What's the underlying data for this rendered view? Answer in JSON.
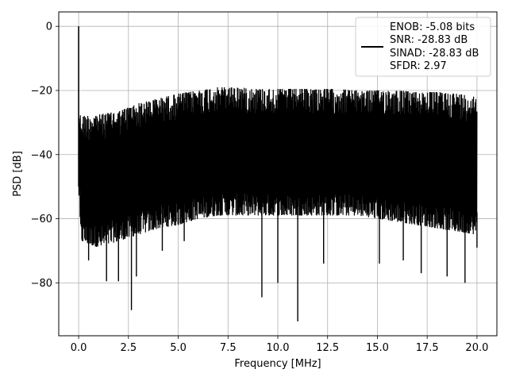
{
  "chart_data": {
    "type": "line",
    "title": "",
    "xlabel": "Frequency [MHz]",
    "ylabel": "PSD [dB]",
    "xlim": [
      -1.0,
      21.0
    ],
    "ylim": [
      -96.5,
      4.5
    ],
    "xticks": [
      0.0,
      2.5,
      5.0,
      7.5,
      10.0,
      12.5,
      15.0,
      17.5,
      20.0
    ],
    "xtick_labels": [
      "0.0",
      "2.5",
      "5.0",
      "7.5",
      "10.0",
      "12.5",
      "15.0",
      "17.5",
      "20.0"
    ],
    "yticks": [
      0,
      -20,
      -40,
      -60,
      -80
    ],
    "ytick_labels": [
      "0",
      "−20",
      "−40",
      "−60",
      "−80"
    ],
    "grid": true,
    "legend_position": "top-right",
    "series": [
      {
        "color": "#000000",
        "peak": {
          "x": 0.0,
          "y": 0.0
        },
        "upper_envelope": {
          "x": [
            0.0,
            0.1,
            1.0,
            2.0,
            3.0,
            4.0,
            5.0,
            6.0,
            7.0,
            8.0,
            9.0,
            10.0,
            11.0,
            12.0,
            13.0,
            14.0,
            15.0,
            16.0,
            17.0,
            18.0,
            19.0,
            20.0
          ],
          "y": [
            -24,
            -27,
            -26.5,
            -25.5,
            -23,
            -21.5,
            -20,
            -19,
            -18,
            -18,
            -18.5,
            -18.5,
            -18.5,
            -18.5,
            -18.5,
            -19,
            -19,
            -19,
            -19.5,
            -19.5,
            -20,
            -21
          ]
        },
        "lower_envelope": {
          "x": [
            0.0,
            0.1,
            1.0,
            2.0,
            3.0,
            4.0,
            5.0,
            6.0,
            7.0,
            8.0,
            9.0,
            10.0,
            11.0,
            12.0,
            13.0,
            14.0,
            15.0,
            16.0,
            17.0,
            18.0,
            19.0,
            20.0
          ],
          "y": [
            -50,
            -66,
            -68,
            -66,
            -64,
            -62,
            -61,
            -59,
            -58,
            -58,
            -58,
            -58,
            -58,
            -58,
            -58,
            -58,
            -59,
            -60,
            -61,
            -62,
            -63,
            -64
          ]
        },
        "minima": [
          {
            "x": 0.15,
            "y": -50
          },
          {
            "x": 0.5,
            "y": -73
          },
          {
            "x": 1.4,
            "y": -79.5
          },
          {
            "x": 2.0,
            "y": -79.5
          },
          {
            "x": 2.65,
            "y": -88.5
          },
          {
            "x": 2.9,
            "y": -78
          },
          {
            "x": 4.2,
            "y": -70
          },
          {
            "x": 5.3,
            "y": -67
          },
          {
            "x": 9.2,
            "y": -84.5
          },
          {
            "x": 10.0,
            "y": -80
          },
          {
            "x": 11.0,
            "y": -92
          },
          {
            "x": 12.3,
            "y": -74
          },
          {
            "x": 15.1,
            "y": -74
          },
          {
            "x": 16.3,
            "y": -73
          },
          {
            "x": 17.2,
            "y": -77
          },
          {
            "x": 18.5,
            "y": -78
          },
          {
            "x": 19.4,
            "y": -80
          },
          {
            "x": 20.0,
            "y": -69
          }
        ]
      }
    ],
    "legend": {
      "lines": [
        "ENOB: -5.08 bits",
        "SNR: -28.83 dB",
        "SINAD: -28.83 dB",
        "SFDR: 2.97"
      ]
    }
  }
}
